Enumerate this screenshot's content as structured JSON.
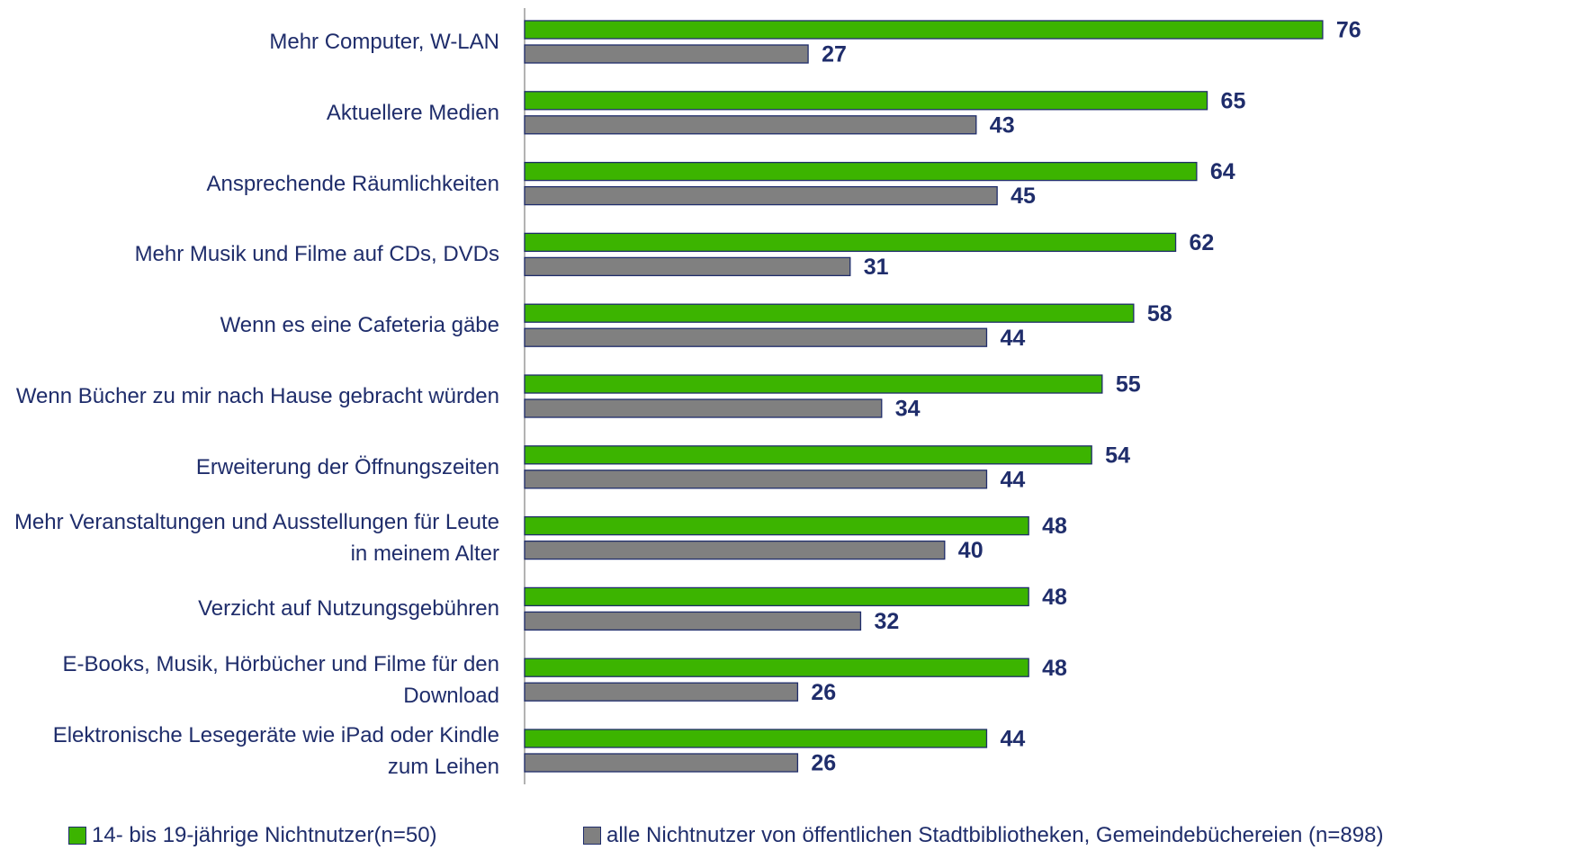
{
  "chart_data": {
    "type": "bar",
    "orientation": "horizontal",
    "categories": [
      "Mehr Computer, W-LAN",
      "Aktuellere Medien",
      "Ansprechende Räumlichkeiten",
      "Mehr Musik und Filme auf CDs, DVDs",
      "Wenn es eine Cafeteria gäbe",
      "Wenn Bücher zu mir nach Hause gebracht würden",
      "Erweiterung der Öffnungszeiten",
      "Mehr Veranstaltungen und Ausstellungen für Leute in meinem Alter",
      "Verzicht auf Nutzungsgebühren",
      "E-Books, Musik, Hörbücher und Filme für den Download",
      "Elektronische Lesegeräte wie iPad oder Kindle zum Leihen"
    ],
    "series": [
      {
        "name": "14- bis 19-jährige Nichtnutzer(n=50)",
        "color": "#3cb400",
        "values": [
          76,
          65,
          64,
          62,
          58,
          55,
          54,
          48,
          48,
          48,
          44
        ]
      },
      {
        "name": "alle Nichtnutzer von öffentlichen Stadtbibliotheken, Gemeindebüchereien (n=898)",
        "color": "#808080",
        "values": [
          27,
          43,
          45,
          31,
          44,
          34,
          44,
          40,
          32,
          26,
          26
        ]
      }
    ],
    "legend": "bottom"
  }
}
